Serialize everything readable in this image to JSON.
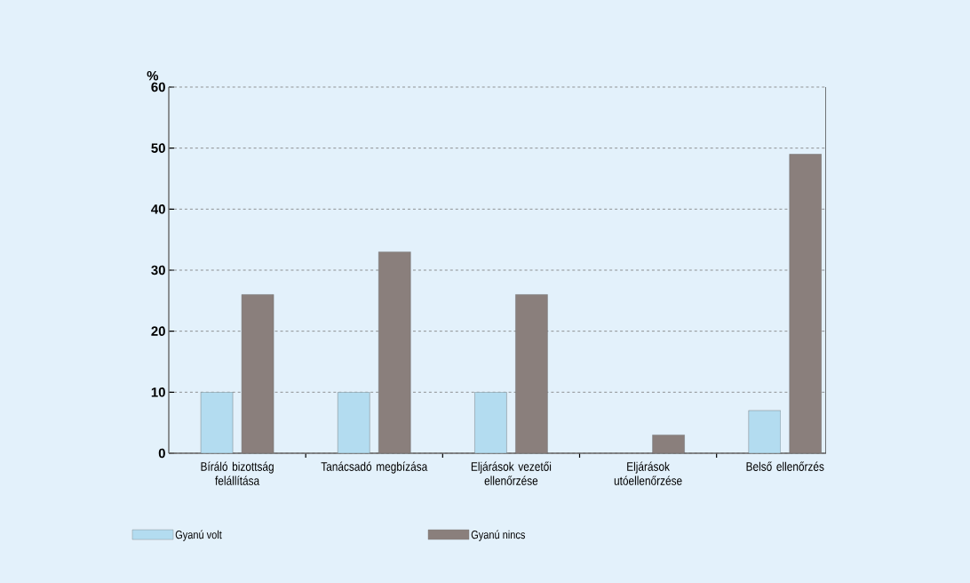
{
  "chart_data": {
    "type": "bar",
    "ylabel": "%",
    "categories": [
      "Bíráló bizottság felállítása",
      "Tanácsadó megbízása",
      "Eljárások vezetői ellenőrzése",
      "Eljárások utóellenőrzése",
      "Belső ellenőrzés"
    ],
    "series": [
      {
        "name": "Gyanú volt",
        "color": "#b3dcf0",
        "values": [
          10,
          10,
          10,
          null,
          7
        ]
      },
      {
        "name": "Gyanú nincs",
        "color": "#8a7f7c",
        "values": [
          26,
          33,
          26,
          3,
          49
        ]
      }
    ],
    "ylim": [
      0,
      60
    ],
    "yticks": [
      0,
      10,
      20,
      30,
      40,
      50,
      60
    ],
    "grid": "y",
    "legend": "bottom"
  }
}
